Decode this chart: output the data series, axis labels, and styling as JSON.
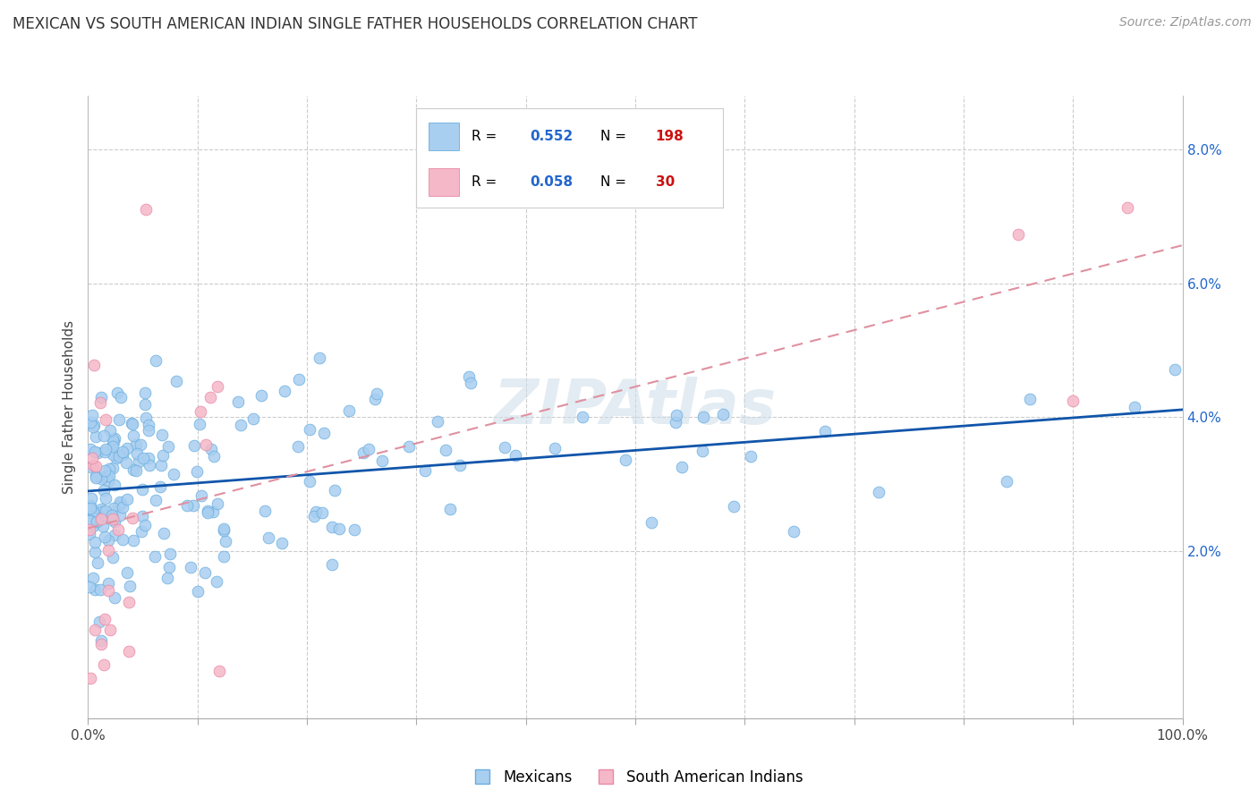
{
  "title": "MEXICAN VS SOUTH AMERICAN INDIAN SINGLE FATHER HOUSEHOLDS CORRELATION CHART",
  "source": "Source: ZipAtlas.com",
  "ylabel": "Single Father Households",
  "xlim": [
    0.0,
    1.0
  ],
  "ylim": [
    -0.005,
    0.088
  ],
  "ytick_vals": [
    0.0,
    0.02,
    0.04,
    0.06,
    0.08
  ],
  "ytick_labels": [
    "",
    "2.0%",
    "4.0%",
    "6.0%",
    "8.0%"
  ],
  "xtick_vals": [
    0.0,
    0.1,
    0.2,
    0.3,
    0.4,
    0.5,
    0.6,
    0.7,
    0.8,
    0.9,
    1.0
  ],
  "xtick_labels": [
    "0.0%",
    "",
    "",
    "",
    "",
    "",
    "",
    "",
    "",
    "",
    "100.0%"
  ],
  "mexican_face": "#a8cef0",
  "mexican_edge": "#6aaee0",
  "sa_face": "#f5b8c8",
  "sa_edge": "#e888a8",
  "trend_blue": "#1155aa",
  "trend_pink": "#e090a0",
  "mexican_R": 0.552,
  "mexican_N": 198,
  "sa_R": 0.058,
  "sa_N": 30,
  "bg_color": "#ffffff",
  "grid_color": "#cccccc",
  "watermark": "ZIPAtlas",
  "watermark_color": "#ccdde8",
  "legend_label1": "Mexicans",
  "legend_label2": "South American Indians",
  "R_color": "#2266cc",
  "N_color": "#cc1111",
  "title_color": "#333333",
  "source_color": "#999999"
}
